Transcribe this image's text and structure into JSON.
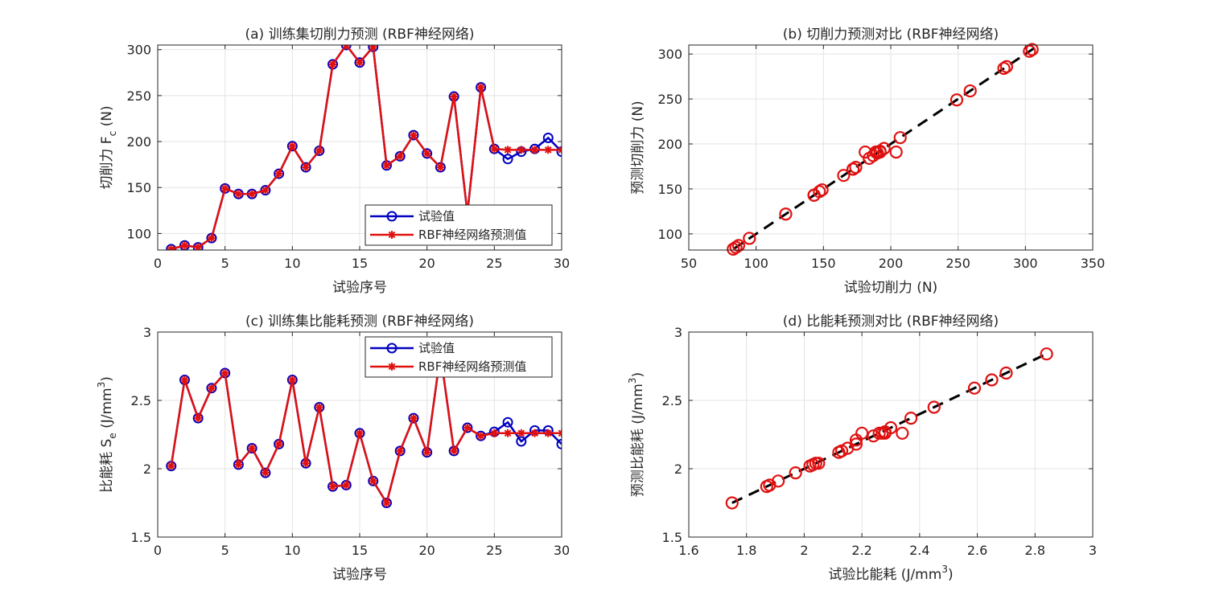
{
  "chart_data": [
    {
      "id": "a",
      "type": "line",
      "title": "(a) 训练集切削力预测 (RBF神经网络)",
      "xlabel": "试验序号",
      "ylabel_main": "切削力 F",
      "ylabel_sub": "c",
      "ylabel_tail": " (N)",
      "xlim": [
        0,
        30
      ],
      "ylim": [
        82,
        305
      ],
      "xticks": [
        0,
        5,
        10,
        15,
        20,
        25,
        30
      ],
      "yticks": [
        100,
        150,
        200,
        250,
        300
      ],
      "legend": {
        "position": "bottom-right",
        "entries": [
          "试验值",
          "RBF神经网络预测值"
        ]
      },
      "x": [
        1,
        2,
        3,
        4,
        5,
        6,
        7,
        8,
        9,
        10,
        11,
        12,
        13,
        14,
        15,
        16,
        17,
        18,
        19,
        20,
        21,
        22,
        23,
        24,
        25,
        26,
        27,
        28,
        29,
        30
      ],
      "series": [
        {
          "name": "试验值",
          "color": "#0000c0",
          "marker": "circle",
          "values": [
            83,
            87,
            85,
            95,
            149,
            143,
            143,
            147,
            165,
            195,
            172,
            190,
            284,
            305,
            286,
            303,
            174,
            184,
            207,
            187,
            172,
            249,
            122,
            259,
            192,
            181,
            189,
            192,
            204,
            189
          ]
        },
        {
          "name": "RBF神经网络预测值",
          "color": "#e01010",
          "marker": "star",
          "values": [
            83,
            87,
            85,
            95,
            149,
            143,
            143,
            147,
            165,
            195,
            172,
            190,
            284,
            305,
            286,
            303,
            174,
            184,
            207,
            187,
            172,
            249,
            122,
            259,
            192,
            191,
            191,
            191,
            191,
            191
          ]
        }
      ]
    },
    {
      "id": "b",
      "type": "scatter",
      "title": "(b) 切削力预测对比 (RBF神经网络)",
      "xlabel": "试验切削力 (N)",
      "ylabel": "预测切削力 (N)",
      "xlim": [
        50,
        350
      ],
      "ylim": [
        82,
        310
      ],
      "xticks": [
        50,
        100,
        150,
        200,
        250,
        300,
        350
      ],
      "yticks": [
        100,
        150,
        200,
        250,
        300
      ],
      "fit_line": [
        [
          83,
          83
        ],
        [
          306,
          306
        ]
      ],
      "points": [
        [
          83,
          83
        ],
        [
          87,
          87
        ],
        [
          85,
          85
        ],
        [
          95,
          95
        ],
        [
          149,
          149
        ],
        [
          143,
          143
        ],
        [
          143,
          143
        ],
        [
          147,
          147
        ],
        [
          165,
          165
        ],
        [
          195,
          195
        ],
        [
          172,
          172
        ],
        [
          190,
          190
        ],
        [
          284,
          284
        ],
        [
          305,
          305
        ],
        [
          286,
          286
        ],
        [
          303,
          303
        ],
        [
          174,
          174
        ],
        [
          184,
          184
        ],
        [
          207,
          207
        ],
        [
          187,
          187
        ],
        [
          172,
          172
        ],
        [
          249,
          249
        ],
        [
          122,
          122
        ],
        [
          259,
          259
        ],
        [
          192,
          192
        ],
        [
          181,
          191
        ],
        [
          189,
          191
        ],
        [
          192,
          191
        ],
        [
          204,
          191
        ],
        [
          189,
          191
        ]
      ]
    },
    {
      "id": "c",
      "type": "line",
      "title": "(c) 训练集比能耗预测 (RBF神经网络)",
      "xlabel": "试验序号",
      "ylabel_main": "比能耗 S",
      "ylabel_sub": "e",
      "ylabel_tail": " (J/mm",
      "ylabel_sup": "3",
      "ylabel_end": ")",
      "xlim": [
        0,
        30
      ],
      "ylim": [
        1.5,
        3
      ],
      "xticks": [
        0,
        5,
        10,
        15,
        20,
        25,
        30
      ],
      "yticks": [
        1.5,
        2,
        2.5,
        3
      ],
      "legend": {
        "position": "top-right",
        "entries": [
          "试验值",
          "RBF神经网络预测值"
        ]
      },
      "x": [
        1,
        2,
        3,
        4,
        5,
        6,
        7,
        8,
        9,
        10,
        11,
        12,
        13,
        14,
        15,
        16,
        17,
        18,
        19,
        20,
        21,
        22,
        23,
        24,
        25,
        26,
        27,
        28,
        29,
        30
      ],
      "series": [
        {
          "name": "试验值",
          "color": "#0000c0",
          "marker": "circle",
          "values": [
            2.02,
            2.65,
            2.37,
            2.59,
            2.7,
            2.03,
            2.15,
            1.97,
            2.18,
            2.65,
            2.04,
            2.45,
            1.87,
            1.88,
            2.26,
            1.91,
            1.75,
            2.13,
            2.37,
            2.12,
            2.84,
            2.13,
            2.3,
            2.24,
            2.27,
            2.34,
            2.2,
            2.28,
            2.28,
            2.18
          ]
        },
        {
          "name": "RBF神经网络预测值",
          "color": "#e01010",
          "marker": "star",
          "values": [
            2.02,
            2.65,
            2.37,
            2.59,
            2.7,
            2.03,
            2.15,
            1.97,
            2.18,
            2.65,
            2.04,
            2.45,
            1.87,
            1.88,
            2.26,
            1.91,
            1.75,
            2.13,
            2.37,
            2.12,
            2.84,
            2.13,
            2.3,
            2.24,
            2.26,
            2.26,
            2.26,
            2.26,
            2.26,
            2.26
          ]
        }
      ]
    },
    {
      "id": "d",
      "type": "scatter",
      "title": "(d) 比能耗预测对比 (RBF神经网络)",
      "xlabel_main": "试验比能耗 (J/mm",
      "xlabel_sup": "3",
      "xlabel_end": ")",
      "ylabel_main": "预测比能耗 (J/mm",
      "ylabel_sup": "3",
      "ylabel_end": ")",
      "xlim": [
        1.6,
        3
      ],
      "ylim": [
        1.5,
        3
      ],
      "xticks": [
        1.6,
        1.8,
        2,
        2.2,
        2.4,
        2.6,
        2.8,
        3
      ],
      "yticks": [
        1.5,
        2,
        2.5,
        3
      ],
      "fit_line": [
        [
          1.75,
          1.75
        ],
        [
          2.84,
          2.84
        ]
      ],
      "points": [
        [
          2.02,
          2.02
        ],
        [
          2.65,
          2.65
        ],
        [
          2.37,
          2.37
        ],
        [
          2.59,
          2.59
        ],
        [
          2.7,
          2.7
        ],
        [
          2.03,
          2.03
        ],
        [
          2.15,
          2.15
        ],
        [
          1.97,
          1.97
        ],
        [
          2.18,
          2.18
        ],
        [
          2.04,
          2.04
        ],
        [
          2.45,
          2.45
        ],
        [
          1.87,
          1.87
        ],
        [
          1.88,
          1.88
        ],
        [
          2.26,
          2.26
        ],
        [
          1.91,
          1.91
        ],
        [
          1.75,
          1.75
        ],
        [
          2.13,
          2.13
        ],
        [
          2.12,
          2.12
        ],
        [
          2.84,
          2.84
        ],
        [
          2.3,
          2.3
        ],
        [
          2.24,
          2.24
        ],
        [
          2.27,
          2.26
        ],
        [
          2.34,
          2.26
        ],
        [
          2.2,
          2.26
        ],
        [
          2.28,
          2.26
        ],
        [
          2.18,
          2.21
        ],
        [
          2.05,
          2.04
        ],
        [
          2.28,
          2.27
        ]
      ]
    }
  ]
}
